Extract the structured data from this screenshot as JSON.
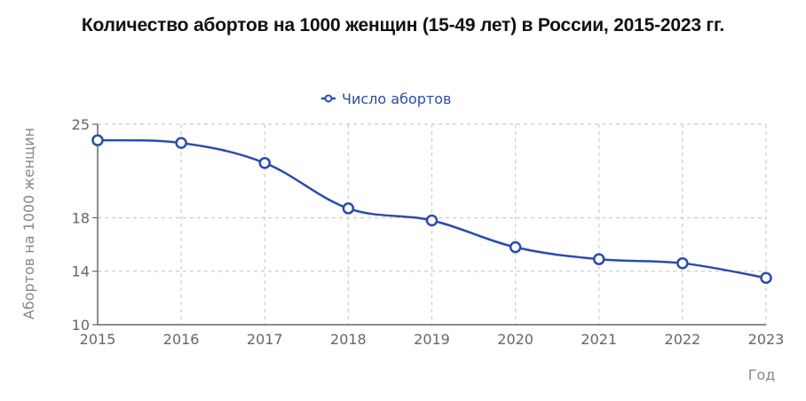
{
  "title": "Количество абортов на 1000 женщин (15-49 лет) в России, 2015-2023 гг.",
  "legend": {
    "label": "Число абортов",
    "icon": "line-circle-marker-icon"
  },
  "colors": {
    "series": "#2a4dab",
    "grid": "#cccccc",
    "axis": "#666666",
    "tick_text": "#666666",
    "axis_title": "#888888"
  },
  "chart_data": {
    "type": "line",
    "title": "Количество абортов на 1000 женщин (15-49 лет) в России, 2015-2023 гг.",
    "xlabel": "Год",
    "ylabel": "Абортов на 1000 женщин",
    "categories": [
      "2015",
      "2016",
      "2017",
      "2018",
      "2019",
      "2020",
      "2021",
      "2022",
      "2023"
    ],
    "series": [
      {
        "name": "Число абортов",
        "values": [
          23.8,
          23.6,
          22.1,
          18.7,
          17.8,
          15.8,
          14.9,
          14.6,
          13.5
        ]
      }
    ],
    "ylim": [
      10,
      25
    ],
    "yticks": [
      10,
      14,
      18,
      25
    ],
    "grid": true,
    "grid_style": "dashed",
    "legend_position": "top-center",
    "curve": "smooth"
  }
}
